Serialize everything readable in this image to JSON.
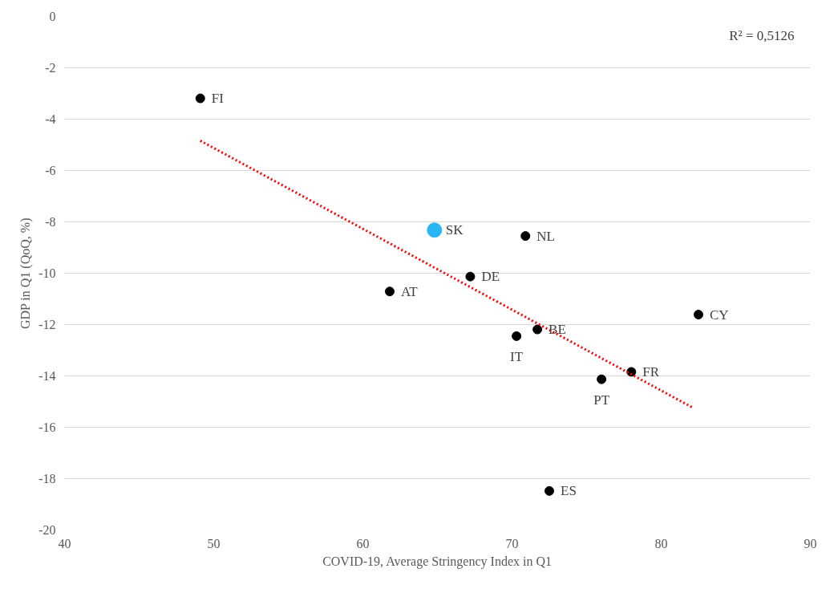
{
  "chart_data": {
    "type": "scatter",
    "xlabel": "COVID-19, Average Stringency Index in Q1",
    "ylabel": "GDP in Q1 (QoQ, %)",
    "xlim": [
      40,
      90
    ],
    "xticks": [
      40,
      50,
      60,
      70,
      80,
      90
    ],
    "ylim": [
      -20,
      0
    ],
    "yticks": [
      -20,
      -18,
      -16,
      -14,
      -12,
      -10,
      -8,
      -6,
      -4,
      -2,
      0
    ],
    "grid": "y",
    "marker": "circle",
    "series": [
      {
        "color": "#000000",
        "x": [
          49.1,
          67.2,
          70.9,
          61.8,
          71.7,
          70.3,
          82.5,
          78.0,
          76.0,
          72.5
        ],
        "values": [
          -3.19,
          -10.13,
          -8.55,
          -10.71,
          -12.19,
          -12.45,
          -11.61,
          -13.84,
          -14.13,
          -18.48
        ]
      },
      {
        "color": "#29b6f6",
        "x": [
          64.8
        ],
        "values": [
          -8.32
        ]
      },
      {
        "type": "line",
        "color": "#ff0000",
        "line_style": "dotted",
        "marker": "none",
        "x": [
          49.1,
          82.1
        ],
        "values": [
          -4.84,
          -15.23
        ]
      }
    ],
    "annotations": [
      {
        "text": "FI",
        "x": 49.1,
        "y": -3.19
      },
      {
        "text": "DE",
        "x": 67.2,
        "y": -10.13
      },
      {
        "text": "NL",
        "x": 70.9,
        "y": -8.55
      },
      {
        "text": "AT",
        "x": 61.8,
        "y": -10.71
      },
      {
        "text": "BE",
        "x": 71.7,
        "y": -12.19
      },
      {
        "text": "IT",
        "x": 70.3,
        "y": -12.45
      },
      {
        "text": "CY",
        "x": 82.5,
        "y": -11.61
      },
      {
        "text": "FR",
        "x": 78.0,
        "y": -13.84
      },
      {
        "text": "PT",
        "x": 76.0,
        "y": -14.13
      },
      {
        "text": "ES",
        "x": 72.5,
        "y": -18.48
      },
      {
        "text": "SK",
        "x": 64.8,
        "y": -8.32
      },
      "R² = 0,5126"
    ]
  }
}
